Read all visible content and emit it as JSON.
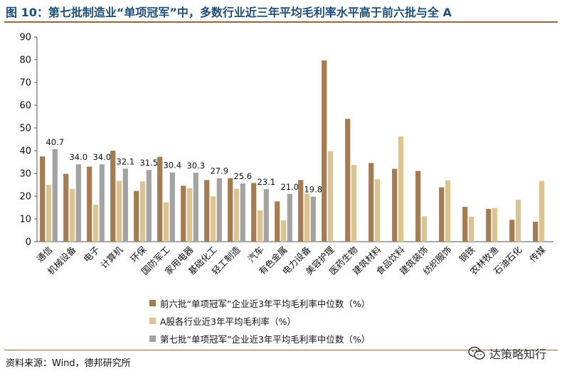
{
  "header": {
    "title": "图 10：第七批制造业“单项冠军”中，多数行业近三年平均毛利率水平高于前六批与全 A"
  },
  "footer": {
    "source": "资料来源：Wind，德邦研究所",
    "watermark": "达策略知行",
    "watermark_icon": "wechat-icon"
  },
  "colors": {
    "s0": "#a57c52",
    "s1": "#dcc392",
    "s2": "#a3a3a3"
  },
  "chart_data": {
    "type": "bar",
    "ylim": [
      0,
      90
    ],
    "yticks": [
      0,
      10,
      20,
      30,
      40,
      50,
      60,
      70,
      80,
      90
    ],
    "grid": false,
    "legend_position": "bottom",
    "categories": [
      "通信",
      "机械设备",
      "电子",
      "计算机",
      "环保",
      "国防军工",
      "家用电器",
      "基础化工",
      "轻工制造",
      "汽车",
      "有色金属",
      "电力设备",
      "美容护理",
      "医药生物",
      "建筑材料",
      "食品饮料",
      "建筑装饰",
      "纺织服饰",
      "钢铁",
      "农林牧渔",
      "石油石化",
      "传媒"
    ],
    "series": [
      {
        "name": "前六批“单项冠军”企业近3年平均毛利率中位数（%）",
        "values": [
          37.5,
          29.8,
          33.0,
          40.0,
          22.3,
          37.3,
          24.6,
          27.1,
          27.9,
          25.8,
          17.7,
          27.1,
          79.7,
          54.0,
          34.6,
          32.0,
          31.1,
          23.9,
          15.3,
          14.4,
          9.6,
          8.8
        ]
      },
      {
        "name": "A股各行业近3年平均毛利率（%）",
        "values": [
          25.0,
          23.2,
          16.3,
          26.7,
          26.5,
          17.3,
          23.5,
          19.9,
          23.3,
          13.7,
          9.4,
          21.1,
          39.8,
          33.7,
          27.5,
          46.3,
          11.2,
          27.0,
          11.0,
          14.8,
          18.4,
          26.7
        ]
      },
      {
        "name": "第七批“单项冠军”企业近3年平均毛利率中位数（%）",
        "values": [
          40.7,
          34.0,
          34.0,
          32.1,
          31.5,
          30.4,
          30.3,
          27.9,
          25.6,
          23.1,
          21.0,
          19.8,
          null,
          null,
          null,
          null,
          null,
          null,
          null,
          null,
          null,
          null
        ]
      }
    ],
    "data_labels": [
      "40.7",
      "34.0",
      "34.0",
      "32.1",
      "31.5",
      "30.4",
      "30.3",
      "27.9",
      "25.6",
      "23.1",
      "21.0",
      "19.8"
    ]
  }
}
